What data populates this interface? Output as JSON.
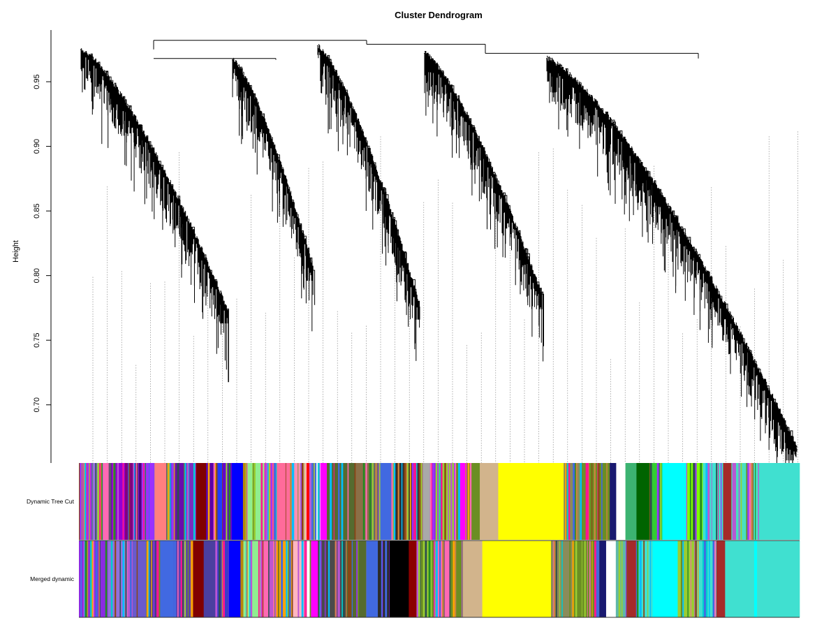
{
  "chart_data": {
    "type": "dendrogram",
    "title": "Cluster Dendrogram",
    "xlabel": "",
    "ylabel": "Height",
    "ylim": [
      0.655,
      0.99
    ],
    "y_ticks": [
      "0.70",
      "0.75",
      "0.80",
      "0.85",
      "0.90",
      "0.95"
    ],
    "grid": false,
    "leaf_count": 1032,
    "top_merge_height": 0.982,
    "cluster_branches": [
      {
        "from": 0.975,
        "to": 0.773
      },
      {
        "from": 0.967,
        "to": 0.806
      },
      {
        "from": 0.978,
        "to": 0.776
      },
      {
        "from": 0.972,
        "to": 0.784
      },
      {
        "from": 0.968,
        "to": 0.667
      }
    ],
    "color_rows": [
      {
        "label": "Dynamic Tree Cut",
        "segments": [
          {
            "color": "#9b30ff",
            "size": 14,
            "mix": true
          },
          {
            "color": "#9370db",
            "size": 12,
            "mix": true
          },
          {
            "color": "#ff69b4",
            "size": 8,
            "mix": true
          },
          {
            "color": "#9400d3",
            "size": 16,
            "mix": true
          },
          {
            "color": "#800080",
            "size": 10,
            "mix": true
          },
          {
            "color": "#4b0082",
            "size": 8,
            "mix": true
          },
          {
            "color": "#9b30ff",
            "size": 14,
            "mix": true
          },
          {
            "color": "#ff7f7f",
            "size": 13,
            "mix": false
          },
          {
            "color": "#5a00d6",
            "size": 8,
            "mix": true
          },
          {
            "color": "#6a0dad",
            "size": 14,
            "mix": true
          },
          {
            "color": "#7b2cbf",
            "size": 10,
            "mix": true
          },
          {
            "color": "#800000",
            "size": 11,
            "mix": false
          },
          {
            "color": "#5b00a8",
            "size": 8,
            "mix": true
          },
          {
            "color": "#1e3cff",
            "size": 10,
            "mix": true
          },
          {
            "color": "#6600cc",
            "size": 10,
            "mix": true
          },
          {
            "color": "#0000ff",
            "size": 12,
            "mix": false
          },
          {
            "color": "#b8860b",
            "size": 3,
            "mix": false
          },
          {
            "color": "#90ee90",
            "size": 20,
            "mix": true
          },
          {
            "color": "#ff4f8b",
            "size": 14,
            "mix": true
          },
          {
            "color": "#ff6b9a",
            "size": 16,
            "mix": true
          },
          {
            "color": "#ff8fb3",
            "size": 10,
            "mix": true
          },
          {
            "color": "#ffb6c1",
            "size": 6,
            "mix": true
          },
          {
            "color": "#ff0000",
            "size": 3,
            "mix": false
          },
          {
            "color": "#ffc0cb",
            "size": 6,
            "mix": true
          },
          {
            "color": "#ffffff",
            "size": 6,
            "mix": true
          },
          {
            "color": "#ff00ff",
            "size": 7,
            "mix": false
          },
          {
            "color": "#556b2f",
            "size": 30,
            "mix": true
          },
          {
            "color": "#8b6f47",
            "size": 16,
            "mix": true
          },
          {
            "color": "#696969",
            "size": 12,
            "mix": true
          },
          {
            "color": "#4169e1",
            "size": 12,
            "mix": false
          },
          {
            "color": "#2e2e2e",
            "size": 20,
            "mix": true
          },
          {
            "color": "#3b1f3f",
            "size": 14,
            "mix": true
          },
          {
            "color": "#a9a9a9",
            "size": 8,
            "mix": false
          },
          {
            "color": "#8a2be2",
            "size": 6,
            "mix": true
          },
          {
            "color": "#9acd32",
            "size": 20,
            "mix": true
          },
          {
            "color": "#ff00ff",
            "size": 14,
            "mix": true
          },
          {
            "color": "#6b8e23",
            "size": 14,
            "mix": true
          },
          {
            "color": "#d2b48c",
            "size": 20,
            "mix": false
          },
          {
            "color": "#ffff00",
            "size": 71,
            "mix": false
          },
          {
            "color": "#8b8b5a",
            "size": 22,
            "mix": true
          },
          {
            "color": "#6b8e23",
            "size": 28,
            "mix": true
          },
          {
            "color": "#191970",
            "size": 7,
            "mix": false
          },
          {
            "color": "#ffffff",
            "size": 10,
            "mix": false
          },
          {
            "color": "#3cb371",
            "size": 12,
            "mix": true
          },
          {
            "color": "#006400",
            "size": 14,
            "mix": false
          },
          {
            "color": "#32cd32",
            "size": 14,
            "mix": true
          },
          {
            "color": "#00ffff",
            "size": 26,
            "mix": false
          },
          {
            "color": "#7cfc00",
            "size": 18,
            "mix": true
          },
          {
            "color": "#40e0d0",
            "size": 22,
            "mix": true
          },
          {
            "color": "#a52a2a",
            "size": 9,
            "mix": false
          },
          {
            "color": "#48e0c0",
            "size": 30,
            "mix": true
          },
          {
            "color": "#40e0d0",
            "size": 44,
            "mix": false
          }
        ]
      },
      {
        "label": "Merged dynamic",
        "segments": [
          {
            "color": "#8a2be2",
            "size": 30,
            "mix": true
          },
          {
            "color": "#9370db",
            "size": 20,
            "mix": true
          },
          {
            "color": "#6a5acd",
            "size": 20,
            "mix": true
          },
          {
            "color": "#483d8b",
            "size": 14,
            "mix": true
          },
          {
            "color": "#4169e1",
            "size": 14,
            "mix": false
          },
          {
            "color": "#5b3fb0",
            "size": 20,
            "mix": true
          },
          {
            "color": "#800000",
            "size": 11,
            "mix": false
          },
          {
            "color": "#4b3fa0",
            "size": 12,
            "mix": true
          },
          {
            "color": "#3b3bc8",
            "size": 14,
            "mix": true
          },
          {
            "color": "#0000ff",
            "size": 12,
            "mix": false
          },
          {
            "color": "#b8860b",
            "size": 3,
            "mix": false
          },
          {
            "color": "#90ee90",
            "size": 20,
            "mix": true
          },
          {
            "color": "#ff69b4",
            "size": 14,
            "mix": true
          },
          {
            "color": "#ffa500",
            "size": 16,
            "mix": true
          },
          {
            "color": "#ffb6c1",
            "size": 14,
            "mix": true
          },
          {
            "color": "#ffffff",
            "size": 6,
            "mix": true
          },
          {
            "color": "#ff00ff",
            "size": 7,
            "mix": false
          },
          {
            "color": "#4a4a4a",
            "size": 30,
            "mix": true
          },
          {
            "color": "#556b2f",
            "size": 20,
            "mix": true
          },
          {
            "color": "#4169e1",
            "size": 12,
            "mix": false
          },
          {
            "color": "#2b2b2b",
            "size": 12,
            "mix": true
          },
          {
            "color": "#000000",
            "size": 20,
            "mix": false
          },
          {
            "color": "#8b0000",
            "size": 8,
            "mix": false
          },
          {
            "color": "#9acd32",
            "size": 20,
            "mix": true
          },
          {
            "color": "#ff69b4",
            "size": 14,
            "mix": true
          },
          {
            "color": "#6b8e23",
            "size": 14,
            "mix": true
          },
          {
            "color": "#d2b48c",
            "size": 20,
            "mix": false
          },
          {
            "color": "#ffff00",
            "size": 71,
            "mix": false
          },
          {
            "color": "#8b8b5a",
            "size": 22,
            "mix": true
          },
          {
            "color": "#6b8e23",
            "size": 28,
            "mix": true
          },
          {
            "color": "#191970",
            "size": 7,
            "mix": false
          },
          {
            "color": "#ffffff",
            "size": 10,
            "mix": false
          },
          {
            "color": "#5fb7a8",
            "size": 12,
            "mix": true
          },
          {
            "color": "#a52a2a",
            "size": 9,
            "mix": false
          },
          {
            "color": "#40e0d0",
            "size": 17,
            "mix": true
          },
          {
            "color": "#00ffff",
            "size": 26,
            "mix": false
          },
          {
            "color": "#9acd32",
            "size": 18,
            "mix": true
          },
          {
            "color": "#40e0d0",
            "size": 22,
            "mix": true
          },
          {
            "color": "#a52a2a",
            "size": 9,
            "mix": false
          },
          {
            "color": "#40e0d0",
            "size": 30,
            "mix": false
          },
          {
            "color": "#00ffff",
            "size": 3,
            "mix": false
          },
          {
            "color": "#40e0d0",
            "size": 44,
            "mix": false
          }
        ]
      }
    ]
  }
}
